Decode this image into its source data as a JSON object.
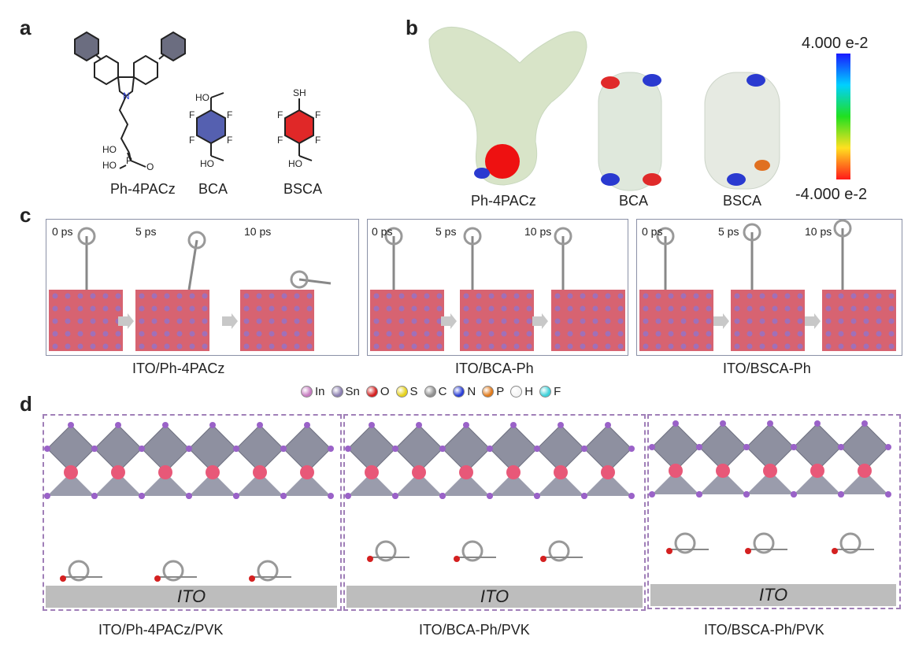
{
  "panels": {
    "a": "a",
    "b": "b",
    "c": "c",
    "d": "d"
  },
  "panel_a": {
    "molecules": [
      "Ph-4PACz",
      "BCA",
      "BSCA"
    ],
    "atoms": {
      "N": "N",
      "P": "P",
      "O": "O",
      "HO": "HO",
      "F": "F",
      "SH": "SH"
    }
  },
  "panel_b": {
    "molecules": [
      "Ph-4PACz",
      "BCA",
      "BSCA"
    ],
    "scale_max": "4.000 e-2",
    "scale_min": "-4.000 e-2"
  },
  "panel_c": {
    "boxes": [
      {
        "times": [
          "0 ps",
          "5 ps",
          "10 ps"
        ],
        "label": "ITO/Ph-4PACz"
      },
      {
        "times": [
          "0 ps",
          "5 ps",
          "10 ps"
        ],
        "label": "ITO/BCA-Ph"
      },
      {
        "times": [
          "0 ps",
          "5 ps",
          "10 ps"
        ],
        "label": "ITO/BSCA-Ph"
      }
    ]
  },
  "legend": [
    {
      "el": "In",
      "color": "#c67cc0"
    },
    {
      "el": "Sn",
      "color": "#8b7fb0"
    },
    {
      "el": "O",
      "color": "#d42020"
    },
    {
      "el": "S",
      "color": "#e6d21c"
    },
    {
      "el": "C",
      "color": "#909090"
    },
    {
      "el": "N",
      "color": "#2b3fd6"
    },
    {
      "el": "P",
      "color": "#e07a1c"
    },
    {
      "el": "H",
      "color": "#f4f4f4"
    },
    {
      "el": "F",
      "color": "#3fd1d9"
    }
  ],
  "panel_d": {
    "boxes": [
      {
        "ito": "ITO",
        "label": "ITO/Ph-4PACz/PVK"
      },
      {
        "ito": "ITO",
        "label": "ITO/BCA-Ph/PVK"
      },
      {
        "ito": "ITO",
        "label": "ITO/BSCA-Ph/PVK"
      }
    ]
  }
}
